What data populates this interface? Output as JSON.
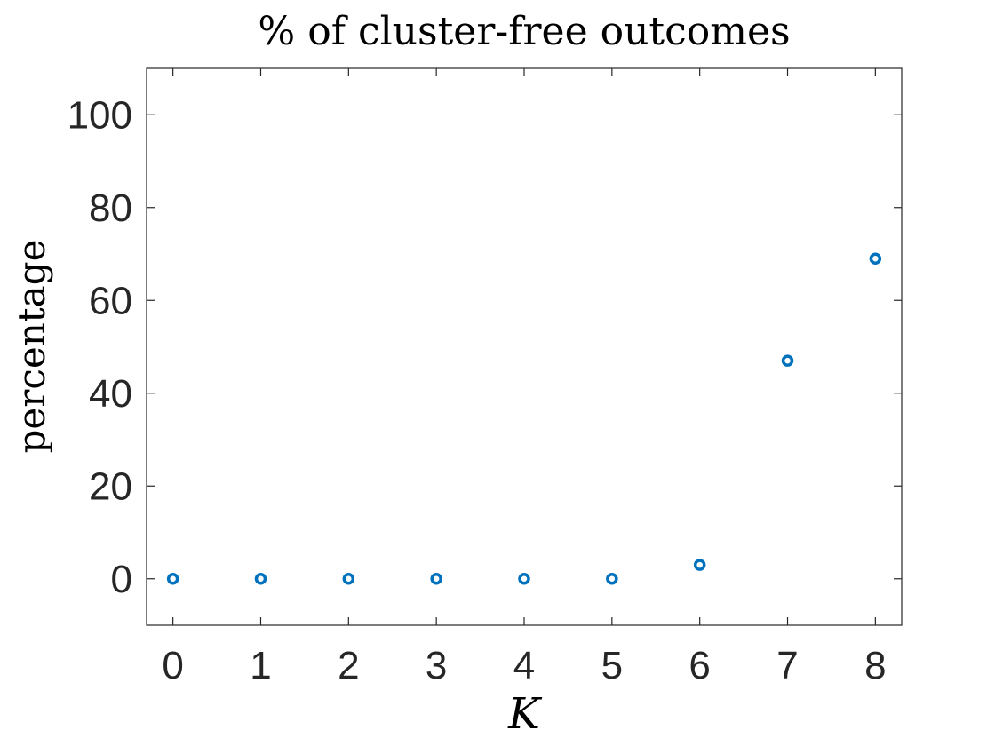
{
  "chart_data": {
    "type": "scatter",
    "title": "% of cluster-free outcomes",
    "xlabel": "K",
    "ylabel": "percentage",
    "xlim": [
      -0.3,
      8.3
    ],
    "ylim": [
      -10,
      110
    ],
    "xticks": [
      0,
      1,
      2,
      3,
      4,
      5,
      6,
      7,
      8
    ],
    "yticks": [
      0,
      20,
      40,
      60,
      80,
      100
    ],
    "grid": false,
    "marker_color": "#0072BD",
    "series": [
      {
        "x": [
          0,
          1,
          2,
          3,
          4,
          5,
          6,
          7,
          8
        ],
        "y": [
          0,
          0,
          0,
          0,
          0,
          0,
          3,
          47,
          69
        ]
      }
    ]
  }
}
